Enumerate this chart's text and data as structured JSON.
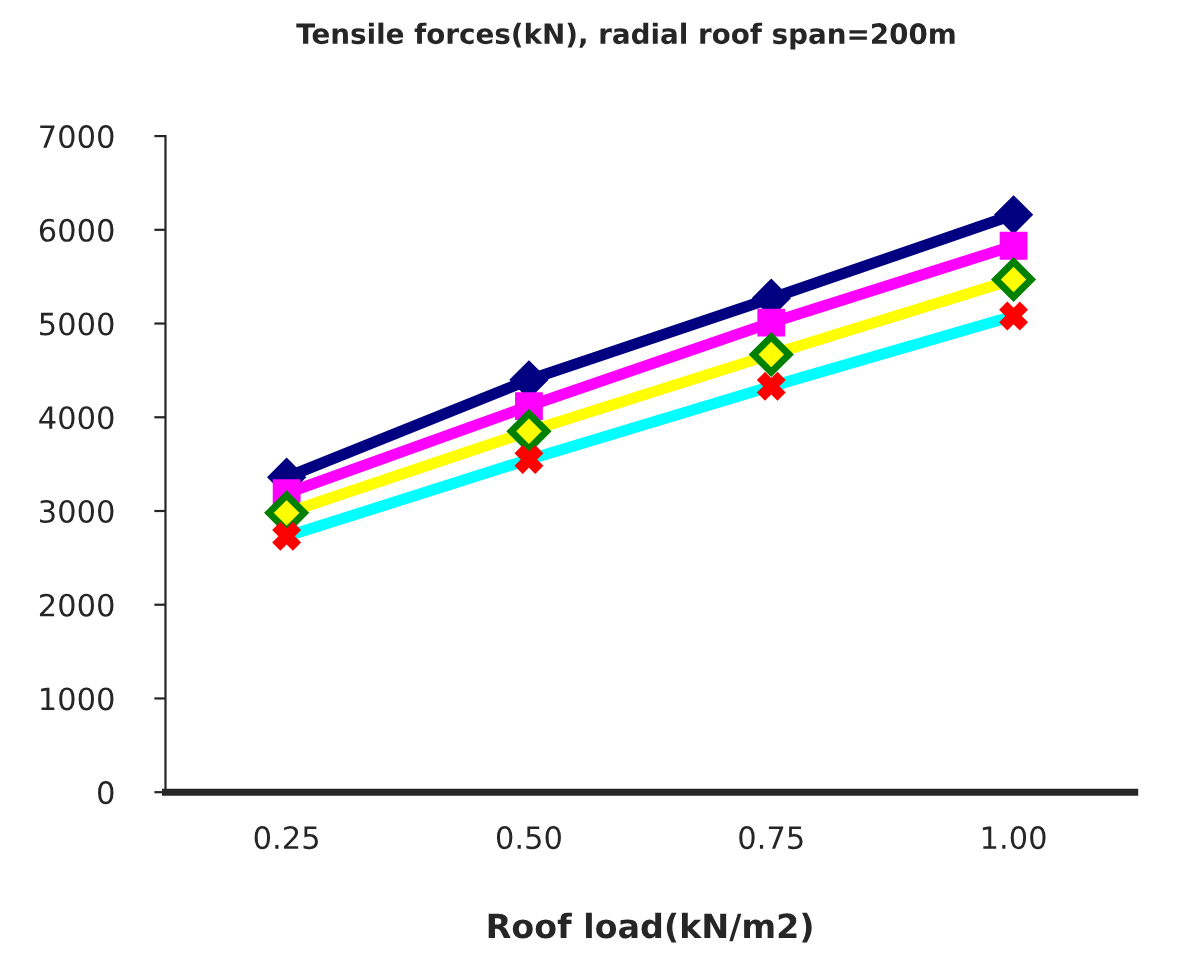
{
  "chart_data": {
    "type": "line",
    "title": "Tensile forces(kN), radial roof span=200m",
    "xlabel": "Roof load(kN/m2)",
    "categories": [
      "0.25",
      "0.50",
      "0.75",
      "1.00"
    ],
    "series": [
      {
        "color": "#000080",
        "marker": "diamond",
        "values": [
          3360,
          4400,
          5270,
          6160
        ]
      },
      {
        "color": "#ff00ff",
        "marker": "square",
        "values": [
          3190,
          4120,
          5010,
          5830
        ]
      },
      {
        "color": "#ffff00",
        "marker": "diamond",
        "values": [
          2980,
          3850,
          4670,
          5470
        ]
      },
      {
        "color": "#00ffff",
        "marker": "cross",
        "values": [
          2730,
          3550,
          4330,
          5080
        ]
      }
    ],
    "ylim": [
      0,
      7000
    ],
    "yticks": [
      0,
      1000,
      2000,
      3000,
      4000,
      5000,
      6000,
      7000
    ],
    "grid": false,
    "legend": false,
    "line_style": "solid"
  }
}
